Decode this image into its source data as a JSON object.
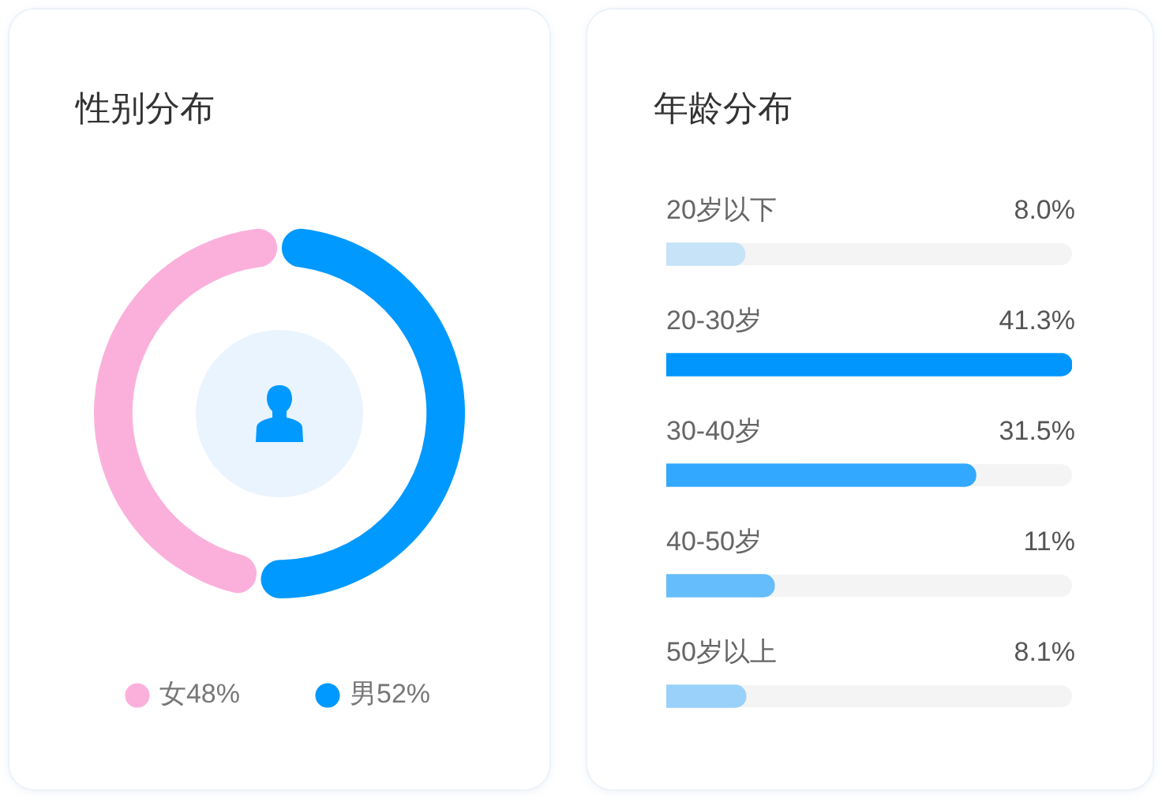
{
  "chart_data": [
    {
      "type": "donut",
      "title": "性别分布",
      "categories": [
        "女",
        "男"
      ],
      "values": [
        48,
        52
      ],
      "colors": [
        "#fbb0dc",
        "#0099ff"
      ],
      "value_labels": [
        "48%",
        "52%"
      ],
      "legend": "bottom"
    },
    {
      "type": "bar",
      "orientation": "horizontal",
      "title": "年龄分布",
      "categories": [
        "20岁以下",
        "20-30岁",
        "30-40岁",
        "40-50岁",
        "50岁以上"
      ],
      "values": [
        8.0,
        41.3,
        31.5,
        11,
        8.1
      ],
      "colors": [
        "#c6e3f7",
        "#0096fe",
        "#33a8ff",
        "#66bdfc",
        "#99d1fa"
      ],
      "value_labels": [
        "8.0%",
        "41.3%",
        "31.5%",
        "11%",
        "8.1%"
      ],
      "xlim": [
        0,
        41.3
      ],
      "tick_labels": "y"
    }
  ]
}
